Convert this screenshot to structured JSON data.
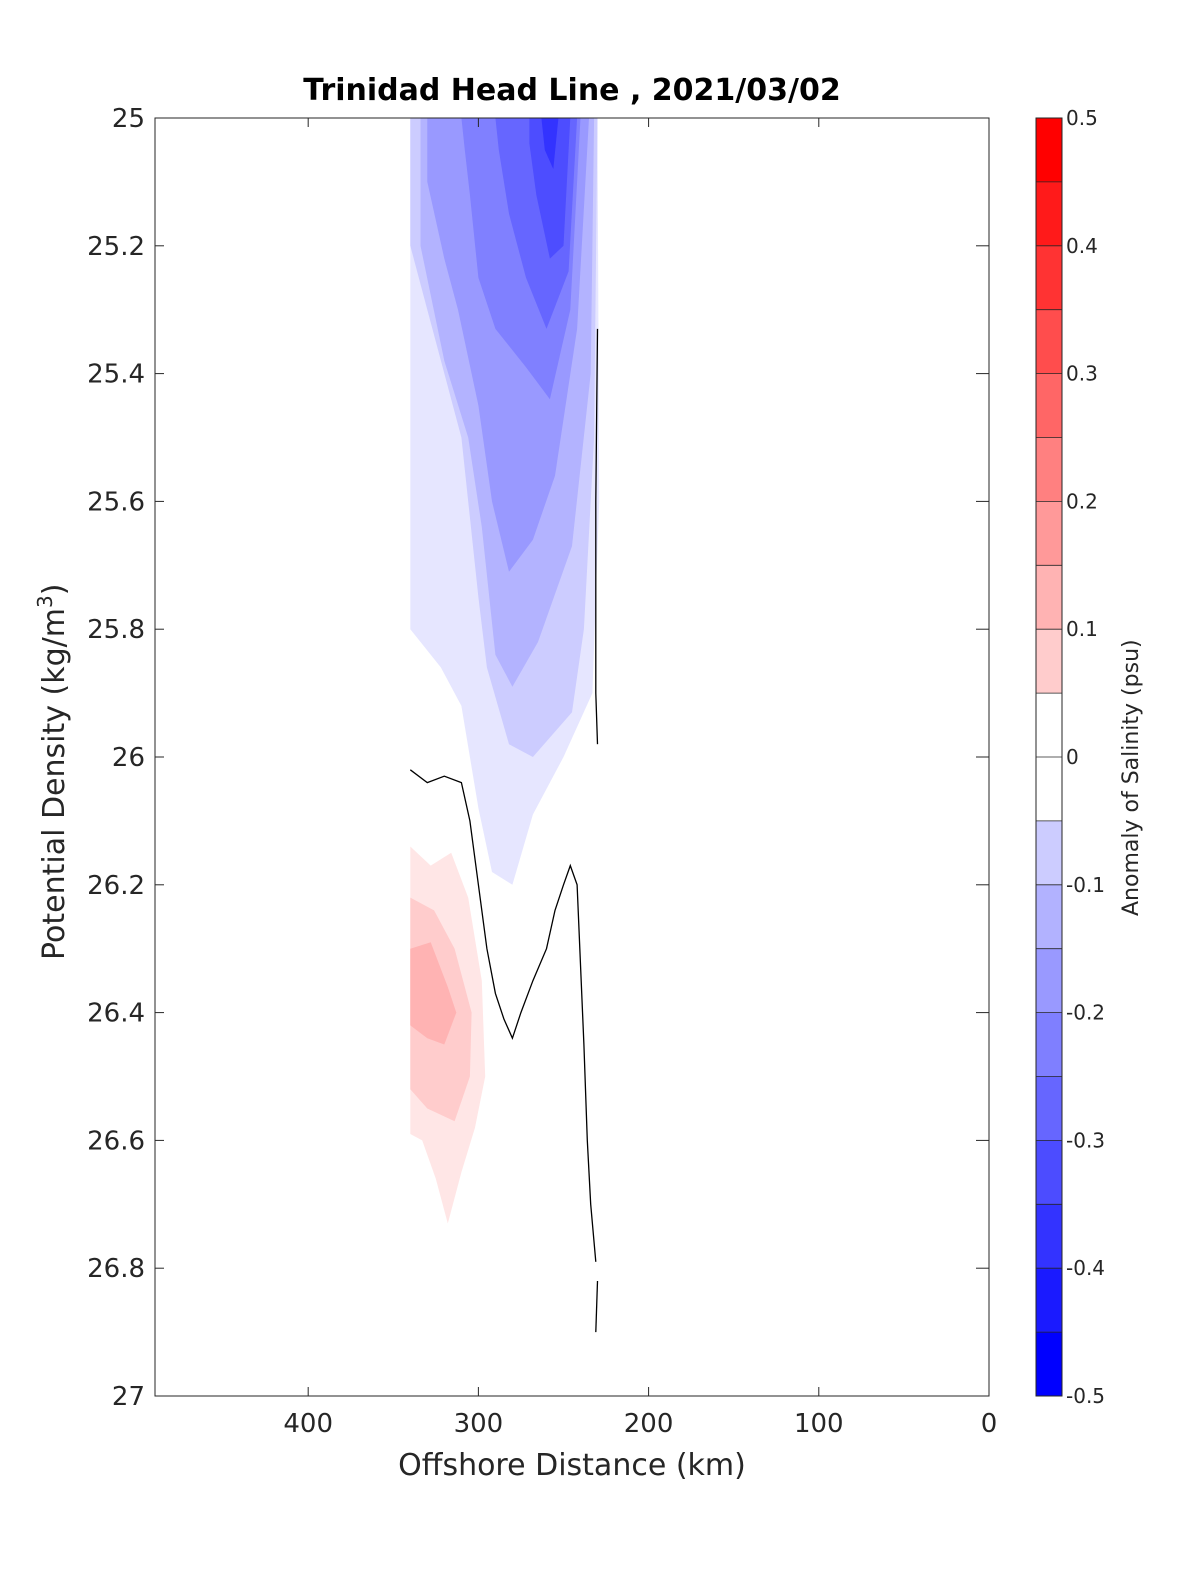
{
  "chart_data": {
    "type": "contour",
    "title": "Trinidad Head Line , 2021/03/02",
    "xlabel": "Offshore Distance (km)",
    "ylabel": "Potential Density (kg/m",
    "ylabel_sup": "3",
    "ylabel_close": ")",
    "xlim": [
      490,
      0
    ],
    "ylim": [
      25,
      27
    ],
    "y_reversed": true,
    "x_ticks": [
      "400",
      "300",
      "200",
      "100",
      "0"
    ],
    "x_tick_values": [
      400,
      300,
      200,
      100,
      0
    ],
    "y_ticks": [
      "25",
      "25.2",
      "25.4",
      "25.6",
      "25.8",
      "26",
      "26.2",
      "26.4",
      "26.6",
      "26.8",
      "27"
    ],
    "y_tick_values": [
      25,
      25.2,
      25.4,
      25.6,
      25.8,
      26,
      26.2,
      26.4,
      26.6,
      26.8,
      27
    ],
    "colorbar": {
      "label": "Anomaly of Salinity (psu)",
      "range": [
        -0.5,
        0.5
      ],
      "step": 0.05,
      "tick_labels": [
        "0.5",
        "0.4",
        "0.3",
        "0.2",
        "0.1",
        "0",
        "-0.1",
        "-0.2",
        "-0.3",
        "-0.4",
        "-0.5"
      ],
      "tick_values": [
        0.5,
        0.4,
        0.3,
        0.2,
        0.1,
        0,
        -0.1,
        -0.2,
        -0.3,
        -0.4,
        -0.5
      ]
    },
    "colors": {
      "negative_max": "#0000ff",
      "positive_max": "#ff0000",
      "zero": "#ffffff",
      "contour_line": "#000000"
    },
    "filled_regions": [
      {
        "level": -0.05,
        "points": [
          [
            340,
            25
          ],
          [
            230,
            25
          ],
          [
            229,
            25.6
          ],
          [
            233,
            25.9
          ],
          [
            250,
            26.0
          ],
          [
            268,
            26.09
          ],
          [
            280,
            26.2
          ],
          [
            292,
            26.18
          ],
          [
            300,
            26.08
          ],
          [
            310,
            25.92
          ],
          [
            322,
            25.86
          ],
          [
            340,
            25.8
          ]
        ]
      },
      {
        "level": -0.1,
        "points": [
          [
            340,
            25
          ],
          [
            230,
            25
          ],
          [
            232,
            25.5
          ],
          [
            238,
            25.8
          ],
          [
            245,
            25.93
          ],
          [
            268,
            26.0
          ],
          [
            282,
            25.98
          ],
          [
            295,
            25.86
          ],
          [
            300,
            25.75
          ],
          [
            310,
            25.5
          ],
          [
            330,
            25.3
          ],
          [
            340,
            25.2
          ]
        ]
      },
      {
        "level": -0.15,
        "points": [
          [
            334,
            25
          ],
          [
            232,
            25
          ],
          [
            234,
            25.4
          ],
          [
            245,
            25.67
          ],
          [
            265,
            25.82
          ],
          [
            280,
            25.89
          ],
          [
            290,
            25.84
          ],
          [
            298,
            25.64
          ],
          [
            306,
            25.5
          ],
          [
            320,
            25.38
          ],
          [
            334,
            25.2
          ]
        ]
      },
      {
        "level": -0.2,
        "points": [
          [
            330,
            25
          ],
          [
            235,
            25
          ],
          [
            242,
            25.33
          ],
          [
            255,
            25.56
          ],
          [
            268,
            25.66
          ],
          [
            282,
            25.71
          ],
          [
            292,
            25.6
          ],
          [
            300,
            25.45
          ],
          [
            312,
            25.3
          ],
          [
            320,
            25.22
          ],
          [
            330,
            25.1
          ]
        ]
      },
      {
        "level": -0.25,
        "points": [
          [
            310,
            25
          ],
          [
            240,
            25
          ],
          [
            246,
            25.3
          ],
          [
            258,
            25.44
          ],
          [
            272,
            25.39
          ],
          [
            290,
            25.33
          ],
          [
            300,
            25.25
          ],
          [
            305,
            25.12
          ],
          [
            308,
            25.05
          ]
        ]
      },
      {
        "level": -0.3,
        "points": [
          [
            290,
            25
          ],
          [
            242,
            25
          ],
          [
            247,
            25.24
          ],
          [
            260,
            25.33
          ],
          [
            272,
            25.25
          ],
          [
            282,
            25.15
          ],
          [
            288,
            25.05
          ]
        ]
      },
      {
        "level": -0.35,
        "points": [
          [
            270,
            25
          ],
          [
            246,
            25
          ],
          [
            250,
            25.2
          ],
          [
            258,
            25.22
          ],
          [
            266,
            25.12
          ],
          [
            270,
            25.04
          ]
        ]
      },
      {
        "level": -0.4,
        "points": [
          [
            263,
            25
          ],
          [
            253,
            25
          ],
          [
            256,
            25.08
          ],
          [
            261,
            25.05
          ]
        ]
      },
      {
        "level": 0.05,
        "points": [
          [
            340,
            26.14
          ],
          [
            328,
            26.17
          ],
          [
            316,
            26.15
          ],
          [
            306,
            26.22
          ],
          [
            298,
            26.35
          ],
          [
            296,
            26.5
          ],
          [
            302,
            26.58
          ],
          [
            310,
            26.65
          ],
          [
            318,
            26.73
          ],
          [
            325,
            26.66
          ],
          [
            333,
            26.6
          ],
          [
            340,
            26.59
          ]
        ]
      },
      {
        "level": 0.1,
        "points": [
          [
            340,
            26.22
          ],
          [
            326,
            26.24
          ],
          [
            314,
            26.3
          ],
          [
            304,
            26.4
          ],
          [
            305,
            26.5
          ],
          [
            314,
            26.57
          ],
          [
            330,
            26.55
          ],
          [
            340,
            26.52
          ]
        ]
      },
      {
        "level": 0.15,
        "points": [
          [
            340,
            26.3
          ],
          [
            328,
            26.29
          ],
          [
            318,
            26.36
          ],
          [
            313,
            26.4
          ],
          [
            320,
            26.45
          ],
          [
            330,
            26.44
          ],
          [
            340,
            26.42
          ]
        ]
      }
    ],
    "zero_contours": [
      [
        [
          230,
          25.33
        ],
        [
          231,
          25.6
        ],
        [
          231,
          25.9
        ],
        [
          230,
          25.98
        ]
      ],
      [
        [
          340,
          26.02
        ],
        [
          330,
          26.04
        ],
        [
          320,
          26.03
        ],
        [
          310,
          26.04
        ],
        [
          305,
          26.1
        ],
        [
          300,
          26.2
        ],
        [
          295,
          26.3
        ],
        [
          290,
          26.37
        ],
        [
          285,
          26.41
        ],
        [
          280,
          26.44
        ],
        [
          275,
          26.4
        ],
        [
          268,
          26.35
        ],
        [
          260,
          26.3
        ],
        [
          255,
          26.24
        ],
        [
          250,
          26.2
        ],
        [
          246,
          26.17
        ],
        [
          242,
          26.2
        ],
        [
          238,
          26.45
        ],
        [
          236,
          26.6
        ],
        [
          234,
          26.7
        ],
        [
          231,
          26.79
        ]
      ],
      [
        [
          230,
          26.82
        ],
        [
          231,
          26.9
        ]
      ]
    ]
  }
}
